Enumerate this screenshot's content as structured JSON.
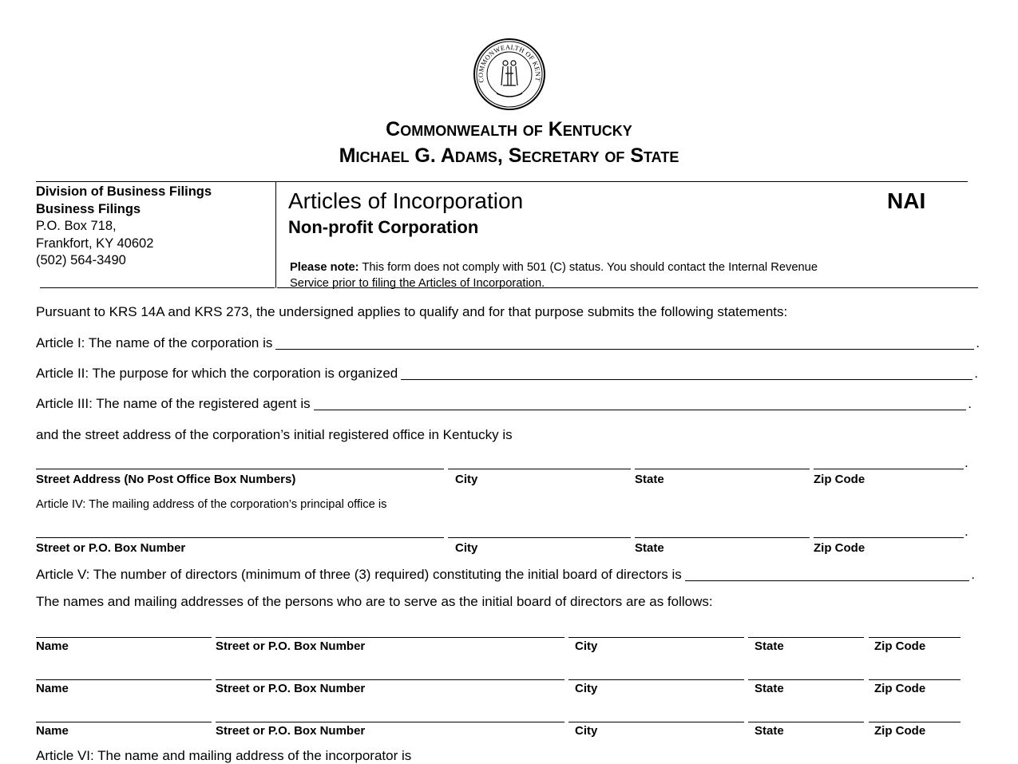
{
  "seal": {
    "text": "COMMONWEALTH OF KENTUCKY"
  },
  "header": {
    "line1": "Commonwealth of Kentucky",
    "line2": "Michael G. Adams, Secretary of State"
  },
  "office": {
    "division": "Division of Business Filings",
    "unit": "Business Filings",
    "po_box": "P.O. Box 718,",
    "city_state_zip": "Frankfort, KY 40602",
    "phone": "(502) 564-3490"
  },
  "form": {
    "title": "Articles of Incorporation",
    "code": "NAI",
    "subtitle": "Non-profit Corporation",
    "note_label": "Please note:",
    "note_line1": " This form does not comply with 501 (C) status. You should contact the Internal Revenue",
    "note_line2": "Service prior to filing the Articles of Incorporation."
  },
  "body": {
    "intro": "Pursuant to KRS 14A and KRS 273, the undersigned applies to qualify and for that purpose submits the following statements:",
    "article1": "Article I: The name of the corporation is",
    "article2": "Article II: The purpose for which the corporation is organized",
    "article3": "Article III: The name of the registered agent is",
    "registered_office": "and the street address of the corporation’s initial registered office in Kentucky is",
    "article4": "Article IV: The mailing address of the corporation’s principal office is",
    "article5": "Article V: The number of directors (minimum of three (3) required) constituting the initial board of directors is",
    "directors_intro": "The names and mailing addresses of the persons who are to serve as the initial board of directors are as follows:",
    "article6": "Article VI: The name and mailing address of the incorporator is",
    "period": "."
  },
  "address_labels_registered": [
    "Street Address (No Post Office Box Numbers)",
    "City",
    "State",
    "Zip Code"
  ],
  "address_labels_mailing": [
    "Street or P.O. Box Number",
    "City",
    "State",
    "Zip Code"
  ],
  "director_labels": [
    "Name",
    "Street or P.O. Box Number",
    "City",
    "State",
    "Zip Code"
  ]
}
